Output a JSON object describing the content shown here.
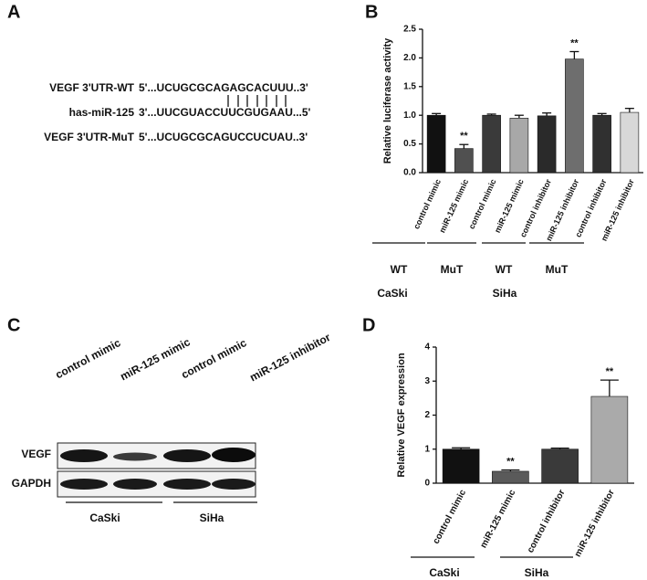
{
  "panel_a": {
    "label": "A",
    "rows": [
      {
        "name": "VEGF 3'UTR-WT",
        "sequence": "5'...UCUGCGCAGAGCACUUU..3'"
      },
      {
        "name": "has-miR-125",
        "sequence": "3'...UUCGUACCUUCGUGAAU...5'"
      },
      {
        "name": "VEGF 3'UTR-MuT",
        "sequence": "5'...UCUGCGCAGUCCUCUAU..3'"
      }
    ]
  },
  "panel_c": {
    "label": "C",
    "lanes": [
      "control mimic",
      "miR-125 mimic",
      "control mimic",
      "miR-125 inhibitor"
    ],
    "blots": [
      "VEGF",
      "GAPDH"
    ],
    "cell_lines": [
      "CaSki",
      "SiHa"
    ]
  },
  "chart_data": [
    {
      "type": "bar",
      "panel_label": "B",
      "y_label": "Relative luciferase activity",
      "categories": [
        "control mimic",
        "miR-125 mimic",
        "control mimic",
        "miR-125 mimic",
        "control inhibitor",
        "miR-125 inhibitor",
        "control inhibitor",
        "miR-125 inhibitor"
      ],
      "values": [
        1.0,
        0.42,
        1.0,
        0.95,
        0.99,
        1.98,
        1.0,
        1.05
      ],
      "errors": [
        0.03,
        0.07,
        0.02,
        0.05,
        0.05,
        0.13,
        0.03,
        0.07
      ],
      "colors": [
        "#111111",
        "#505050",
        "#3a3a3a",
        "#a8a8a8",
        "#2a2a2a",
        "#6e6e6e",
        "#303030",
        "#d8d8d8"
      ],
      "annotations": [
        null,
        "**",
        null,
        null,
        null,
        "**",
        null,
        null
      ],
      "ylim": [
        0,
        2.5
      ],
      "yticks": [
        {
          "value": 0,
          "label": "0.0"
        },
        {
          "value": 0.5,
          "label": "0.5"
        },
        {
          "value": 1,
          "label": "1.0"
        },
        {
          "value": 1.5,
          "label": "1.5"
        },
        {
          "value": 2,
          "label": "2.0"
        },
        {
          "value": 2.5,
          "label": "2.5"
        }
      ],
      "groups": [
        "WT",
        "MuT",
        "WT",
        "MuT"
      ],
      "cell_lines": [
        "CaSki",
        "SiHa"
      ]
    },
    {
      "type": "bar",
      "panel_label": "D",
      "y_label": "Relative VEGF expression",
      "categories": [
        "control mimic",
        "miR-125 mimic",
        "control inhibitor",
        "miR-125 inhibitor"
      ],
      "values": [
        1.0,
        0.35,
        1.0,
        2.55
      ],
      "errors": [
        0.04,
        0.04,
        0.03,
        0.48
      ],
      "colors": [
        "#111111",
        "#5a5a5a",
        "#3a3a3a",
        "#aaaaaa"
      ],
      "annotations": [
        null,
        "**",
        null,
        "**"
      ],
      "ylim": [
        0,
        4
      ],
      "yticks": [
        0,
        1,
        2,
        3,
        4
      ],
      "cell_lines": [
        "CaSki",
        "SiHa"
      ]
    }
  ]
}
